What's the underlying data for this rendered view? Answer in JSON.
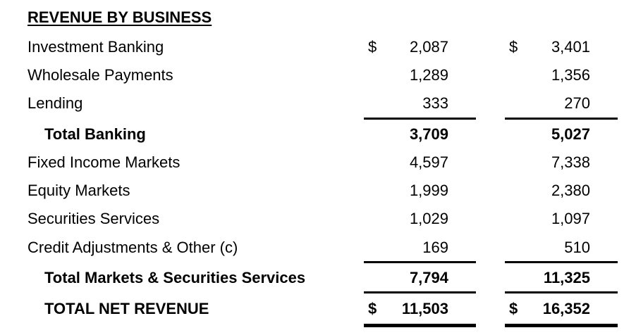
{
  "title": "REVENUE BY BUSINESS",
  "currency_symbol": "$",
  "rows": [
    {
      "label": "Investment Banking",
      "v1": "2,087",
      "v2": "3,401"
    },
    {
      "label": "Wholesale Payments",
      "v1": "1,289",
      "v2": "1,356"
    },
    {
      "label": "Lending",
      "v1": "333",
      "v2": "270"
    },
    {
      "label": "Total Banking",
      "v1": "3,709",
      "v2": "5,027"
    },
    {
      "label": "Fixed Income Markets",
      "v1": "4,597",
      "v2": "7,338"
    },
    {
      "label": "Equity Markets",
      "v1": "1,999",
      "v2": "2,380"
    },
    {
      "label": "Securities Services",
      "v1": "1,029",
      "v2": "1,097"
    },
    {
      "label": "Credit Adjustments & Other (c)",
      "v1": "169",
      "v2": "510"
    },
    {
      "label": "Total Markets & Securities Services",
      "v1": "7,794",
      "v2": "11,325"
    },
    {
      "label": "TOTAL NET REVENUE",
      "v1": "11,503",
      "v2": "16,352"
    }
  ]
}
